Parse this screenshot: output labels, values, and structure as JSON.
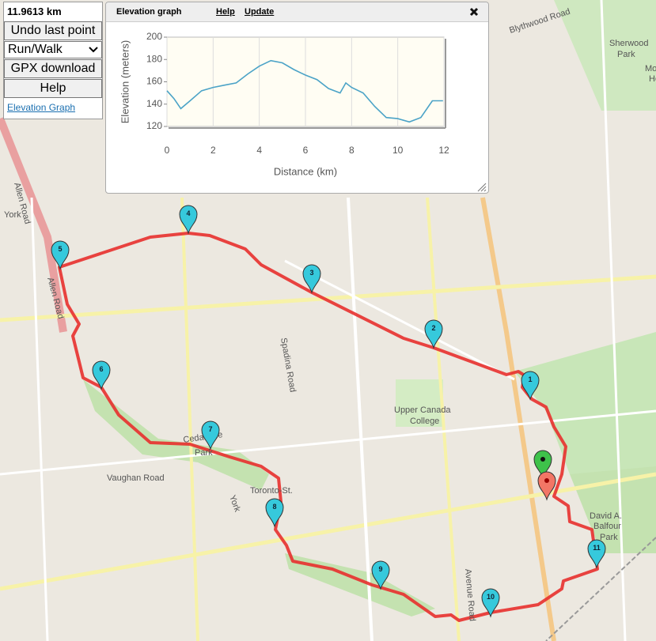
{
  "sidebar": {
    "distance": "11.9613 km",
    "undo": "Undo last point",
    "mode": "Run/Walk",
    "gpx": "GPX download",
    "help": "Help",
    "elevation_link": "Elevation Graph"
  },
  "panel": {
    "title": "Elevation graph",
    "help": "Help",
    "update": "Update"
  },
  "chart_data": {
    "type": "line",
    "xlabel": "Distance (km)",
    "ylabel": "Elevation (meters)",
    "color": "#4ba3c7",
    "x": [
      0,
      0.3,
      0.6,
      1,
      1.5,
      2,
      2.5,
      3,
      3.5,
      4,
      4.5,
      5,
      5.5,
      6,
      6.5,
      7,
      7.5,
      7.75,
      8,
      8.5,
      9,
      9.5,
      10,
      10.5,
      11,
      11.5,
      11.96
    ],
    "values": [
      152,
      145,
      136,
      143,
      152,
      155,
      157,
      159,
      167,
      174,
      179,
      177,
      171,
      166,
      162,
      154,
      150,
      159,
      155,
      150,
      138,
      128,
      127,
      124,
      128,
      143,
      143
    ],
    "xlim": [
      0,
      12
    ],
    "ylim": [
      120,
      200
    ],
    "xticks": [
      0,
      2,
      4,
      6,
      8,
      10,
      12
    ],
    "yticks": [
      120,
      140,
      160,
      180,
      200
    ],
    "grid": true
  },
  "map": {
    "labels": [
      "Blythwood Road",
      "Sherwood",
      "Park",
      "Mount",
      "Hope C",
      "Allen Road",
      "Allen Road",
      "York",
      "Spadina Road",
      "Upper Canada",
      "College",
      "Cedarvale",
      "Park",
      "Vaughan Road",
      "Toronto-St.",
      "David A.",
      "Balfour",
      "Park",
      "Avenue Road",
      "York"
    ],
    "markers": [
      "1",
      "2",
      "3",
      "4",
      "5",
      "6",
      "7",
      "8",
      "9",
      "10",
      "11"
    ]
  }
}
